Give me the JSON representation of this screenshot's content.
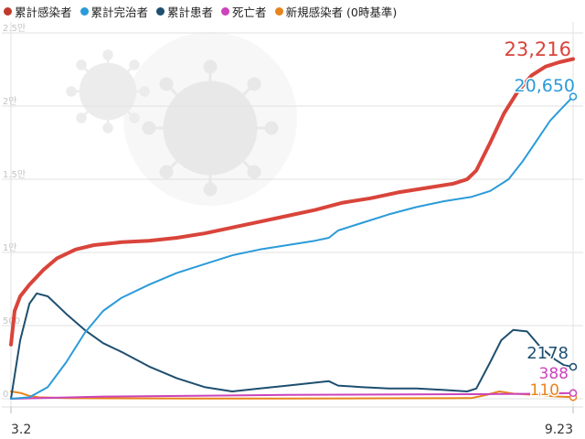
{
  "chart_data": {
    "type": "line",
    "x_start_label": "3.2",
    "x_end_label": "9.23",
    "x_ticks": [
      "3.2",
      "9.23"
    ],
    "y_ticks": [
      "0",
      "500",
      "1만",
      "1.5만",
      "2만",
      "2.5만"
    ],
    "y_tick_values": [
      0,
      5000,
      10000,
      15000,
      20000,
      25000
    ],
    "ylim": [
      0,
      25000
    ],
    "grid": true,
    "legend_position": "top-left",
    "series": [
      {
        "name": "累計感染者",
        "color": "#d9443b",
        "end_label": "23,216",
        "points": [
          [
            0,
            3700
          ],
          [
            4,
            6000
          ],
          [
            10,
            7000
          ],
          [
            20,
            7800
          ],
          [
            35,
            8800
          ],
          [
            50,
            9600
          ],
          [
            70,
            10200
          ],
          [
            90,
            10500
          ],
          [
            120,
            10700
          ],
          [
            150,
            10800
          ],
          [
            180,
            11000
          ],
          [
            210,
            11300
          ],
          [
            240,
            11700
          ],
          [
            270,
            12100
          ],
          [
            300,
            12500
          ],
          [
            330,
            12900
          ],
          [
            360,
            13400
          ],
          [
            390,
            13700
          ],
          [
            420,
            14100
          ],
          [
            450,
            14400
          ],
          [
            480,
            14700
          ],
          [
            495,
            15000
          ],
          [
            505,
            15600
          ],
          [
            520,
            17500
          ],
          [
            535,
            19500
          ],
          [
            550,
            21000
          ],
          [
            565,
            22100
          ],
          [
            580,
            22700
          ],
          [
            595,
            23000
          ],
          [
            610,
            23216
          ]
        ]
      },
      {
        "name": "累計完治者",
        "color": "#2b9bd9",
        "end_label": "20,650",
        "points": [
          [
            0,
            0
          ],
          [
            20,
            100
          ],
          [
            40,
            800
          ],
          [
            60,
            2500
          ],
          [
            80,
            4500
          ],
          [
            100,
            6000
          ],
          [
            120,
            6900
          ],
          [
            150,
            7800
          ],
          [
            180,
            8600
          ],
          [
            210,
            9200
          ],
          [
            240,
            9800
          ],
          [
            270,
            10200
          ],
          [
            300,
            10500
          ],
          [
            330,
            10800
          ],
          [
            345,
            11000
          ],
          [
            355,
            11500
          ],
          [
            380,
            12000
          ],
          [
            410,
            12600
          ],
          [
            440,
            13100
          ],
          [
            470,
            13500
          ],
          [
            500,
            13800
          ],
          [
            520,
            14200
          ],
          [
            540,
            15000
          ],
          [
            555,
            16200
          ],
          [
            570,
            17600
          ],
          [
            585,
            19000
          ],
          [
            600,
            20000
          ],
          [
            610,
            20650
          ]
        ]
      },
      {
        "name": "累計患者",
        "color": "#1e4f70",
        "end_label": "2178",
        "points": [
          [
            0,
            0
          ],
          [
            10,
            4000
          ],
          [
            20,
            6500
          ],
          [
            28,
            7200
          ],
          [
            40,
            7000
          ],
          [
            60,
            5800
          ],
          [
            80,
            4700
          ],
          [
            100,
            3800
          ],
          [
            120,
            3200
          ],
          [
            150,
            2200
          ],
          [
            180,
            1400
          ],
          [
            210,
            800
          ],
          [
            240,
            500
          ],
          [
            270,
            700
          ],
          [
            300,
            900
          ],
          [
            330,
            1100
          ],
          [
            345,
            1200
          ],
          [
            355,
            900
          ],
          [
            380,
            800
          ],
          [
            410,
            700
          ],
          [
            440,
            700
          ],
          [
            470,
            600
          ],
          [
            495,
            500
          ],
          [
            505,
            700
          ],
          [
            520,
            2500
          ],
          [
            532,
            4000
          ],
          [
            545,
            4700
          ],
          [
            560,
            4600
          ],
          [
            575,
            3500
          ],
          [
            590,
            2700
          ],
          [
            600,
            2300
          ],
          [
            610,
            2178
          ]
        ]
      },
      {
        "name": "死亡者",
        "color": "#cc44bb",
        "end_label": "388",
        "points": [
          [
            0,
            0
          ],
          [
            100,
            150
          ],
          [
            200,
            200
          ],
          [
            300,
            260
          ],
          [
            400,
            290
          ],
          [
            500,
            310
          ],
          [
            560,
            340
          ],
          [
            610,
            388
          ]
        ]
      },
      {
        "name": "新規感染者 (0時基準)",
        "color": "#e8841c",
        "end_label": "110",
        "points": [
          [
            0,
            500
          ],
          [
            10,
            400
          ],
          [
            20,
            200
          ],
          [
            30,
            100
          ],
          [
            60,
            50
          ],
          [
            100,
            30
          ],
          [
            200,
            20
          ],
          [
            300,
            20
          ],
          [
            400,
            30
          ],
          [
            480,
            40
          ],
          [
            500,
            50
          ],
          [
            515,
            250
          ],
          [
            530,
            500
          ],
          [
            545,
            350
          ],
          [
            560,
            300
          ],
          [
            580,
            200
          ],
          [
            595,
            150
          ],
          [
            610,
            110
          ]
        ]
      }
    ]
  }
}
